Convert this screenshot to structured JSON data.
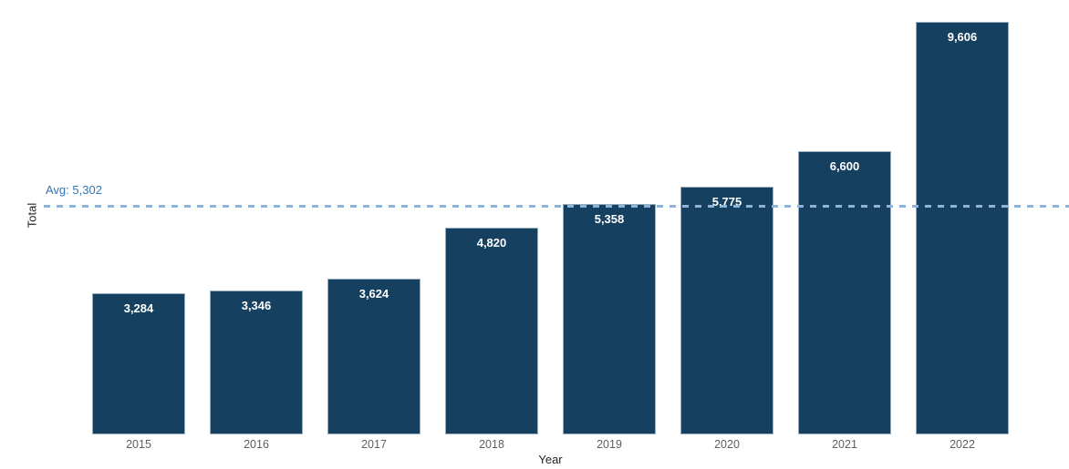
{
  "chart_data": {
    "type": "bar",
    "title": "",
    "xlabel": "Year",
    "ylabel": "Total",
    "categories": [
      "2015",
      "2016",
      "2017",
      "2018",
      "2019",
      "2020",
      "2021",
      "2022"
    ],
    "values": [
      3284,
      3346,
      3624,
      4820,
      5358,
      5775,
      6600,
      9606
    ],
    "value_labels": [
      "3,284",
      "3,346",
      "3,624",
      "4,820",
      "5,358",
      "5,775",
      "6,600",
      "9,606"
    ],
    "average_line": {
      "value": 5302,
      "label": "Avg: 5,302"
    },
    "legend_position": "none",
    "grid": false,
    "ylim": [
      0,
      10000
    ]
  },
  "colors": {
    "bar_fill": "#16405f",
    "bar_label": "#ffffff",
    "avg_line": "#8fb3d6",
    "avg_text": "#3576b5",
    "tick_label": "#605e5c",
    "axis_title": "#252423",
    "background": "#ffffff"
  }
}
